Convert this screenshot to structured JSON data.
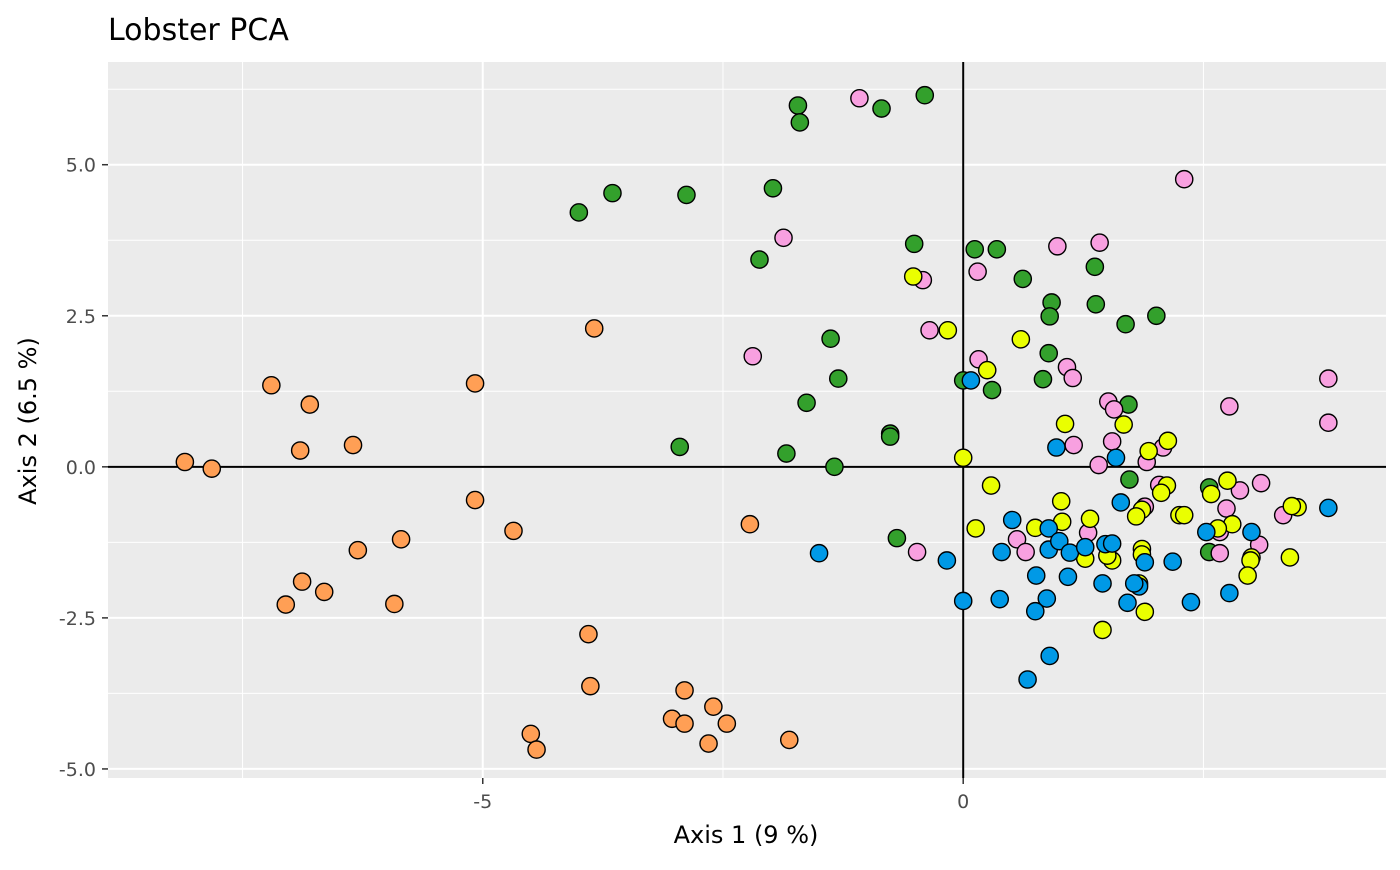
{
  "chart_data": {
    "type": "scatter",
    "title": "Lobster PCA",
    "xlabel": "Axis 1 (9 %)",
    "ylabel": "Axis 2 (6.5 %)",
    "xlim": [
      -8.9,
      4.4
    ],
    "ylim": [
      -5.15,
      6.7
    ],
    "x_ticks": [
      {
        "value": -5,
        "label": "-5"
      },
      {
        "value": 0,
        "label": "0"
      }
    ],
    "y_ticks": [
      {
        "value": 5,
        "label": "5.0"
      },
      {
        "value": 2.5,
        "label": "2.5"
      },
      {
        "value": 0,
        "label": "0.0"
      },
      {
        "value": -2.5,
        "label": "-2.5"
      },
      {
        "value": -5,
        "label": "-5.0"
      }
    ],
    "grid": true,
    "reference_lines": {
      "x": 0,
      "y": 0
    },
    "legend": "none",
    "colors": {
      "panel_background": "#ebebeb",
      "grid_major": "#ffffff",
      "point_outline": "#000000",
      "orange": "#ff9f55",
      "green": "#33a02c",
      "pink": "#f8a0e0",
      "yellow": "#eaff00",
      "blue": "#0099e6"
    },
    "series": [
      {
        "color_key": "orange",
        "points": [
          [
            -8.1,
            0.08
          ],
          [
            -7.82,
            -0.03
          ],
          [
            -7.2,
            1.35
          ],
          [
            -6.9,
            0.27
          ],
          [
            -6.8,
            1.03
          ],
          [
            -6.35,
            0.36
          ],
          [
            -6.3,
            -1.38
          ],
          [
            -6.65,
            -2.07
          ],
          [
            -6.88,
            -1.9
          ],
          [
            -7.05,
            -2.28
          ],
          [
            -5.85,
            -1.2
          ],
          [
            -5.92,
            -2.27
          ],
          [
            -5.08,
            1.38
          ],
          [
            -5.08,
            -0.55
          ],
          [
            -4.68,
            -1.06
          ],
          [
            -3.84,
            2.29
          ],
          [
            -3.9,
            -2.77
          ],
          [
            -3.88,
            -3.63
          ],
          [
            -4.5,
            -4.42
          ],
          [
            -4.44,
            -4.68
          ],
          [
            -2.9,
            -3.7
          ],
          [
            -3.03,
            -4.17
          ],
          [
            -2.9,
            -4.25
          ],
          [
            -2.6,
            -3.97
          ],
          [
            -2.65,
            -4.58
          ],
          [
            -2.46,
            -4.25
          ],
          [
            -2.22,
            -0.95
          ],
          [
            -1.81,
            -4.52
          ]
        ]
      },
      {
        "color_key": "green",
        "points": [
          [
            -4.0,
            4.21
          ],
          [
            -3.65,
            4.53
          ],
          [
            -2.88,
            4.5
          ],
          [
            -1.98,
            4.61
          ],
          [
            -2.12,
            3.43
          ],
          [
            -1.72,
            5.98
          ],
          [
            -1.7,
            5.7
          ],
          [
            -0.85,
            5.93
          ],
          [
            -0.4,
            6.15
          ],
          [
            -0.51,
            3.69
          ],
          [
            0.12,
            3.6
          ],
          [
            0.35,
            3.6
          ],
          [
            0.62,
            3.11
          ],
          [
            -1.38,
            2.12
          ],
          [
            -1.3,
            1.46
          ],
          [
            -1.63,
            1.06
          ],
          [
            -1.34,
            0.0
          ],
          [
            -1.84,
            0.22
          ],
          [
            -2.95,
            0.33
          ],
          [
            -0.76,
            0.55
          ],
          [
            -0.76,
            0.5
          ],
          [
            -0.69,
            -1.18
          ],
          [
            0.0,
            1.43
          ],
          [
            0.3,
            1.27
          ],
          [
            0.92,
            2.72
          ],
          [
            0.9,
            2.49
          ],
          [
            0.89,
            1.88
          ],
          [
            0.83,
            1.45
          ],
          [
            1.37,
            3.31
          ],
          [
            1.38,
            2.69
          ],
          [
            1.69,
            2.36
          ],
          [
            2.01,
            2.5
          ],
          [
            1.72,
            1.03
          ],
          [
            1.73,
            -0.21
          ],
          [
            2.56,
            -0.34
          ],
          [
            2.56,
            -1.41
          ]
        ]
      },
      {
        "color_key": "pink",
        "points": [
          [
            -1.08,
            6.1
          ],
          [
            2.3,
            4.76
          ],
          [
            -1.87,
            3.79
          ],
          [
            -2.19,
            1.83
          ],
          [
            -0.42,
            3.09
          ],
          [
            -0.35,
            2.26
          ],
          [
            0.15,
            3.23
          ],
          [
            0.16,
            1.78
          ],
          [
            0.98,
            3.65
          ],
          [
            1.42,
            3.71
          ],
          [
            1.08,
            1.65
          ],
          [
            1.14,
            1.47
          ],
          [
            1.51,
            1.08
          ],
          [
            1.57,
            0.95
          ],
          [
            1.55,
            0.42
          ],
          [
            1.15,
            0.36
          ],
          [
            1.41,
            0.03
          ],
          [
            1.91,
            0.08
          ],
          [
            2.08,
            0.32
          ],
          [
            2.77,
            1.0
          ],
          [
            3.8,
            1.46
          ],
          [
            3.8,
            0.73
          ],
          [
            2.04,
            -0.3
          ],
          [
            3.1,
            -0.27
          ],
          [
            2.88,
            -0.39
          ],
          [
            2.74,
            -0.69
          ],
          [
            3.33,
            -0.8
          ],
          [
            3.08,
            -1.29
          ],
          [
            2.67,
            -1.08
          ],
          [
            2.67,
            -1.43
          ],
          [
            1.89,
            -0.66
          ],
          [
            1.3,
            -1.09
          ],
          [
            0.56,
            -1.2
          ],
          [
            0.65,
            -1.41
          ],
          [
            -0.48,
            -1.41
          ]
        ]
      },
      {
        "color_key": "yellow",
        "points": [
          [
            -0.52,
            3.15
          ],
          [
            -0.16,
            2.26
          ],
          [
            0.6,
            2.11
          ],
          [
            0.25,
            1.6
          ],
          [
            0.0,
            0.15
          ],
          [
            0.29,
            -0.31
          ],
          [
            0.13,
            -1.02
          ],
          [
            1.06,
            0.71
          ],
          [
            1.67,
            0.7
          ],
          [
            1.93,
            0.26
          ],
          [
            2.13,
            0.43
          ],
          [
            2.12,
            -0.31
          ],
          [
            2.06,
            -0.43
          ],
          [
            2.25,
            -0.8
          ],
          [
            2.3,
            -0.8
          ],
          [
            2.58,
            -0.45
          ],
          [
            2.75,
            -0.23
          ],
          [
            2.8,
            -0.95
          ],
          [
            2.65,
            -1.02
          ],
          [
            1.02,
            -0.57
          ],
          [
            1.03,
            -0.91
          ],
          [
            1.32,
            -0.86
          ],
          [
            0.75,
            -1.01
          ],
          [
            1.86,
            -0.71
          ],
          [
            1.8,
            -0.82
          ],
          [
            1.86,
            -1.36
          ],
          [
            1.86,
            -1.45
          ],
          [
            1.55,
            -1.55
          ],
          [
            1.5,
            -1.47
          ],
          [
            1.27,
            -1.52
          ],
          [
            1.45,
            -2.7
          ],
          [
            1.83,
            -1.93
          ],
          [
            1.89,
            -2.4
          ],
          [
            3.0,
            -1.5
          ],
          [
            2.99,
            -1.55
          ],
          [
            3.48,
            -0.67
          ],
          [
            3.42,
            -0.65
          ],
          [
            3.4,
            -1.5
          ],
          [
            2.96,
            -1.8
          ]
        ]
      },
      {
        "color_key": "blue",
        "points": [
          [
            0.08,
            1.43
          ],
          [
            0.97,
            0.32
          ],
          [
            1.59,
            0.15
          ],
          [
            1.64,
            -0.59
          ],
          [
            0.51,
            -0.88
          ],
          [
            0.4,
            -1.41
          ],
          [
            0.89,
            -1.37
          ],
          [
            0.89,
            -1.02
          ],
          [
            1.0,
            -1.23
          ],
          [
            1.11,
            -1.42
          ],
          [
            1.27,
            -1.33
          ],
          [
            1.48,
            -1.28
          ],
          [
            1.55,
            -1.27
          ],
          [
            1.83,
            -1.98
          ],
          [
            1.89,
            -1.58
          ],
          [
            1.78,
            -1.93
          ],
          [
            1.71,
            -2.25
          ],
          [
            1.45,
            -1.93
          ],
          [
            2.18,
            -1.57
          ],
          [
            1.09,
            -1.82
          ],
          [
            0.76,
            -1.8
          ],
          [
            0.87,
            -2.18
          ],
          [
            0.75,
            -2.39
          ],
          [
            0.9,
            -3.13
          ],
          [
            0.67,
            -3.52
          ],
          [
            0.38,
            -2.19
          ],
          [
            0.0,
            -2.22
          ],
          [
            -0.17,
            -1.55
          ],
          [
            -1.5,
            -1.43
          ],
          [
            2.53,
            -1.08
          ],
          [
            2.37,
            -2.24
          ],
          [
            2.77,
            -2.09
          ],
          [
            3.0,
            -1.08
          ],
          [
            3.8,
            -0.68
          ]
        ]
      }
    ]
  }
}
